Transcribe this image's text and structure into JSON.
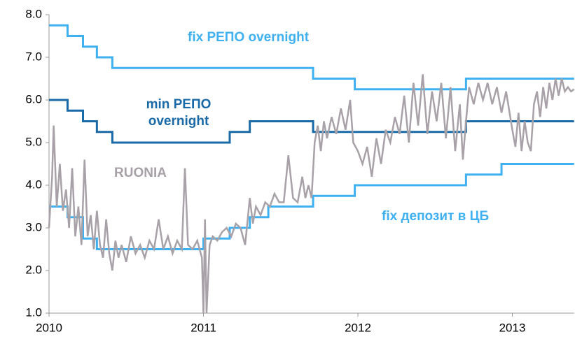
{
  "chart_data": {
    "type": "line",
    "xlim": [
      2010,
      2013.4
    ],
    "xticks": [
      2010,
      2011,
      2012,
      2013
    ],
    "ylim": [
      1,
      8
    ],
    "yticks": [
      {
        "value": 1,
        "label": "1.0"
      },
      {
        "value": 2,
        "label": "2.0"
      },
      {
        "value": 3,
        "label": "3.0"
      },
      {
        "value": 4,
        "label": "4.0"
      },
      {
        "value": 5,
        "label": "5.0"
      },
      {
        "value": 6,
        "label": "6.0"
      },
      {
        "value": 7,
        "label": "7.0"
      },
      {
        "value": 8,
        "label": "8.0"
      }
    ],
    "grid": false,
    "series": [
      {
        "name": "fix РЕПО overnight",
        "color": "#3fb0f0",
        "x": [
          2010,
          2010.12,
          2010.12,
          2010.22,
          2010.22,
          2010.31,
          2010.31,
          2010.41,
          2010.41,
          2011.71,
          2011.71,
          2011.98,
          2011.98,
          2012.7,
          2012.7,
          2013.4
        ],
        "values": [
          7.75,
          7.75,
          7.5,
          7.5,
          7.25,
          7.25,
          7.0,
          7.0,
          6.75,
          6.75,
          6.5,
          6.5,
          6.25,
          6.25,
          6.5,
          6.5
        ]
      },
      {
        "name": "min РЕПО overnight",
        "color": "#1a6aa8",
        "x": [
          2010,
          2010.12,
          2010.12,
          2010.22,
          2010.22,
          2010.31,
          2010.31,
          2010.41,
          2010.41,
          2011.17,
          2011.17,
          2011.3,
          2011.3,
          2011.71,
          2011.71,
          2012.7,
          2012.7,
          2013.4
        ],
        "values": [
          6.0,
          6.0,
          5.75,
          5.75,
          5.5,
          5.5,
          5.25,
          5.25,
          5.0,
          5.0,
          5.25,
          5.25,
          5.5,
          5.5,
          5.25,
          5.25,
          5.5,
          5.5
        ]
      },
      {
        "name": "fix депозит в ЦБ",
        "color": "#3fb0f0",
        "x": [
          2010,
          2010.12,
          2010.12,
          2010.22,
          2010.22,
          2010.31,
          2010.31,
          2011.0,
          2011.0,
          2011.17,
          2011.17,
          2011.3,
          2011.3,
          2011.42,
          2011.42,
          2011.71,
          2011.71,
          2011.98,
          2011.98,
          2012.7,
          2012.7,
          2012.93,
          2012.93,
          2013.4
        ],
        "values": [
          3.5,
          3.5,
          3.25,
          3.25,
          2.75,
          2.75,
          2.5,
          2.5,
          2.75,
          2.75,
          3.0,
          3.0,
          3.25,
          3.25,
          3.5,
          3.5,
          3.75,
          3.75,
          4.0,
          4.0,
          4.25,
          4.25,
          4.5,
          4.5
        ]
      },
      {
        "name": "RUONIA",
        "color": "#a8a2a8",
        "x": [
          2010.0,
          2010.02,
          2010.03,
          2010.05,
          2010.07,
          2010.09,
          2010.11,
          2010.13,
          2010.15,
          2010.17,
          2010.19,
          2010.21,
          2010.23,
          2010.25,
          2010.27,
          2010.29,
          2010.31,
          2010.33,
          2010.35,
          2010.37,
          2010.39,
          2010.41,
          2010.43,
          2010.45,
          2010.47,
          2010.5,
          2010.53,
          2010.56,
          2010.59,
          2010.62,
          2010.65,
          2010.68,
          2010.71,
          2010.74,
          2010.77,
          2010.8,
          2010.83,
          2010.86,
          2010.88,
          2010.9,
          2010.93,
          2010.96,
          2010.99,
          2011.0,
          2011.01,
          2011.02,
          2011.04,
          2011.06,
          2011.09,
          2011.12,
          2011.15,
          2011.18,
          2011.21,
          2011.24,
          2011.27,
          2011.3,
          2011.32,
          2011.34,
          2011.37,
          2011.4,
          2011.43,
          2011.46,
          2011.49,
          2011.52,
          2011.55,
          2011.58,
          2011.61,
          2011.64,
          2011.66,
          2011.68,
          2011.7,
          2011.72,
          2011.74,
          2011.76,
          2011.78,
          2011.8,
          2011.83,
          2011.86,
          2011.89,
          2011.92,
          2011.95,
          2011.97,
          2012.0,
          2012.03,
          2012.06,
          2012.09,
          2012.12,
          2012.15,
          2012.18,
          2012.21,
          2012.24,
          2012.27,
          2012.3,
          2012.33,
          2012.36,
          2012.39,
          2012.42,
          2012.45,
          2012.48,
          2012.51,
          2012.54,
          2012.57,
          2012.6,
          2012.63,
          2012.66,
          2012.68,
          2012.7,
          2012.72,
          2012.75,
          2012.78,
          2012.81,
          2012.84,
          2012.87,
          2012.9,
          2012.93,
          2012.96,
          2013.0,
          2013.02,
          2013.04,
          2013.06,
          2013.08,
          2013.1,
          2013.12,
          2013.14,
          2013.16,
          2013.18,
          2013.2,
          2013.22,
          2013.24,
          2013.26,
          2013.28,
          2013.3,
          2013.32,
          2013.34,
          2013.36,
          2013.38,
          2013.4
        ],
        "values": [
          3.0,
          4.2,
          5.4,
          3.5,
          4.5,
          3.4,
          3.9,
          3.0,
          4.4,
          2.8,
          3.5,
          2.6,
          4.6,
          2.8,
          3.3,
          2.5,
          3.4,
          2.6,
          2.3,
          3.2,
          2.4,
          2.0,
          2.7,
          2.3,
          2.6,
          2.2,
          2.8,
          2.4,
          2.6,
          2.3,
          2.7,
          2.5,
          3.2,
          2.5,
          2.8,
          2.4,
          2.7,
          2.5,
          4.4,
          2.6,
          2.5,
          2.7,
          2.3,
          1.0,
          3.2,
          1.0,
          2.6,
          2.8,
          2.7,
          2.9,
          3.0,
          2.8,
          3.1,
          3.0,
          2.6,
          3.7,
          3.1,
          3.5,
          3.3,
          3.6,
          3.5,
          3.8,
          3.6,
          3.6,
          4.7,
          3.7,
          3.6,
          4.2,
          3.7,
          4.0,
          3.7,
          5.0,
          5.4,
          4.8,
          5.5,
          5.1,
          5.6,
          5.2,
          5.8,
          5.3,
          6.0,
          5.0,
          4.8,
          4.5,
          4.9,
          4.2,
          5.1,
          4.5,
          5.3,
          5.0,
          5.6,
          5.2,
          6.1,
          5.0,
          6.4,
          5.4,
          6.6,
          5.2,
          6.2,
          5.5,
          6.4,
          5.1,
          6.3,
          4.8,
          5.9,
          4.6,
          5.5,
          6.3,
          5.9,
          6.4,
          6.0,
          6.4,
          5.9,
          6.3,
          5.7,
          6.2,
          5.3,
          4.9,
          5.7,
          4.8,
          5.5,
          5.0,
          4.8,
          5.9,
          6.2,
          5.6,
          6.3,
          5.8,
          6.4,
          6.0,
          6.5,
          6.1,
          6.5,
          6.2,
          6.3,
          6.2,
          6.25
        ]
      }
    ]
  }
}
